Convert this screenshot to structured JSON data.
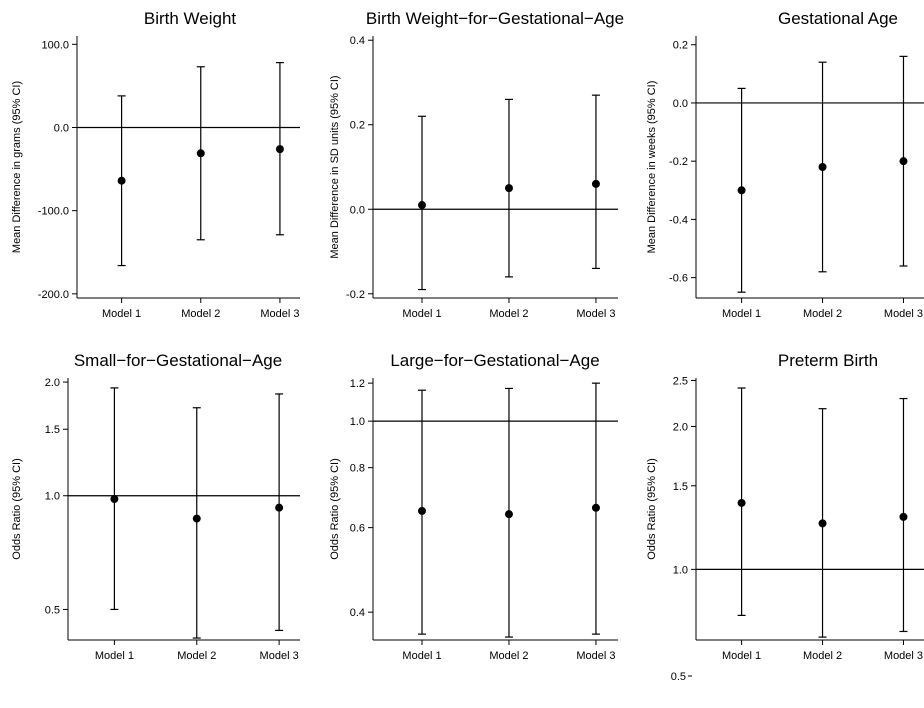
{
  "chart_data": [
    {
      "type": "scatter",
      "title": "Birth Weight",
      "ylabel": "Mean Difference in grams (95% CI)",
      "categories": [
        "Model 1",
        "Model 2",
        "Model 3"
      ],
      "estimates": [
        -64,
        -31,
        -26
      ],
      "ci_lower": [
        -166,
        -135,
        -129
      ],
      "ci_upper": [
        38,
        73,
        78
      ],
      "reference_line": 0,
      "yticks": [
        "100.0",
        "0.0",
        "-100.0",
        "-200.0"
      ],
      "ylim": [
        -205,
        110
      ],
      "scale": "linear"
    },
    {
      "type": "scatter",
      "title": "Birth Weight−for−Gestational−Age",
      "ylabel": "Mean Difference in SD units (95% CI)",
      "categories": [
        "Model 1",
        "Model 2",
        "Model 3"
      ],
      "estimates": [
        0.01,
        0.05,
        0.06
      ],
      "ci_lower": [
        -0.19,
        -0.16,
        -0.14
      ],
      "ci_upper": [
        0.22,
        0.26,
        0.27
      ],
      "reference_line": 0,
      "yticks": [
        "0.4",
        "0.2",
        "0.0",
        "-0.2"
      ],
      "ylim": [
        -0.21,
        0.41
      ],
      "scale": "linear"
    },
    {
      "type": "scatter",
      "title": "Gestational Age",
      "ylabel": "Mean Difference in weeks (95% CI)",
      "categories": [
        "Model 1",
        "Model 2",
        "Model 3"
      ],
      "estimates": [
        -0.3,
        -0.22,
        -0.2
      ],
      "ci_lower": [
        -0.65,
        -0.58,
        -0.56
      ],
      "ci_upper": [
        0.05,
        0.14,
        0.16
      ],
      "reference_line": 0,
      "yticks": [
        "0.2",
        "0.0",
        "-0.2",
        "-0.4",
        "-0.6"
      ],
      "ylim": [
        -0.67,
        0.23
      ],
      "scale": "linear"
    },
    {
      "type": "scatter",
      "title": "Small−for−Gestational−Age",
      "ylabel": "Odds Ratio (95% CI)",
      "categories": [
        "Model 1",
        "Model 2",
        "Model 3"
      ],
      "estimates": [
        0.98,
        0.87,
        0.93
      ],
      "ci_lower": [
        0.5,
        0.42,
        0.44
      ],
      "ci_upper": [
        1.93,
        1.71,
        1.86
      ],
      "reference_line": 1,
      "yticks": [
        "2.0",
        "1.5",
        "1.0",
        "0.5"
      ],
      "ylim": [
        0.415,
        2.05
      ],
      "scale": "log"
    },
    {
      "type": "scatter",
      "title": "Large−for−Gestational−Age",
      "ylabel": "Odds Ratio (95% CI)",
      "categories": [
        "Model 1",
        "Model 2",
        "Model 3"
      ],
      "estimates": [
        0.65,
        0.64,
        0.66
      ],
      "ci_lower": [
        0.36,
        0.355,
        0.36
      ],
      "ci_upper": [
        1.16,
        1.17,
        1.2
      ],
      "reference_line": 1,
      "yticks": [
        "1.2",
        "1.0",
        "0.8",
        "0.6",
        "0.4"
      ],
      "ylim": [
        0.35,
        1.23
      ],
      "scale": "log"
    },
    {
      "type": "scatter",
      "title": "Preterm Birth",
      "ylabel": "Odds Ratio (95% CI)",
      "categories": [
        "Model 1",
        "Model 2",
        "Model 3"
      ],
      "estimates": [
        1.38,
        1.25,
        1.29
      ],
      "ci_lower": [
        0.8,
        0.72,
        0.74
      ],
      "ci_upper": [
        2.41,
        2.18,
        2.29
      ],
      "reference_line": 1,
      "yticks": [
        "2.5",
        "2.0",
        "1.5",
        "1.0",
        "0.5"
      ],
      "ylim": [
        0.71,
        2.53
      ],
      "scale": "log"
    }
  ]
}
